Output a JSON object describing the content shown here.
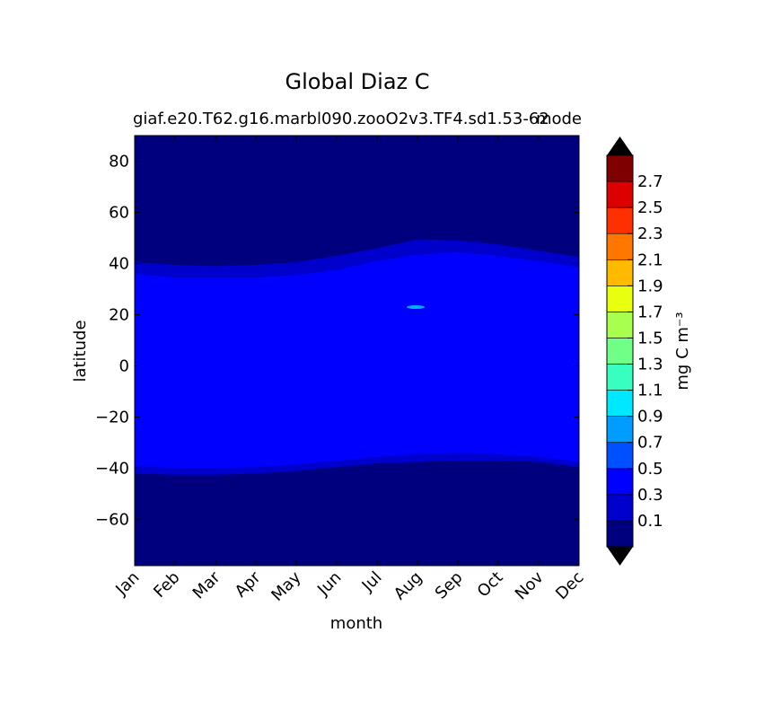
{
  "chart_data": {
    "type": "heatmap",
    "title": "Global Diaz C",
    "subtitle_left": "giaf.e20.T62.g16.marbl090.zooO2v3.TF4.sd1.53-62",
    "subtitle_right": "mode",
    "xlabel": "month",
    "ylabel": "latitude",
    "x_categories": [
      "Jan",
      "Feb",
      "Mar",
      "Apr",
      "May",
      "Jun",
      "Jul",
      "Aug",
      "Sep",
      "Oct",
      "Nov",
      "Dec"
    ],
    "ylim": [
      -78,
      90
    ],
    "yticks": [
      80,
      60,
      40,
      20,
      0,
      -20,
      -40,
      -60
    ],
    "ytick_labels": [
      "80",
      "60",
      "40",
      "20",
      "0",
      "−20",
      "−40",
      "−60"
    ],
    "colorbar": {
      "label": "mg C m⁻³",
      "levels": [
        0,
        0.2,
        0.4,
        0.6,
        0.8,
        1.0,
        1.2,
        1.4,
        1.6,
        1.8,
        2.0,
        2.2,
        2.4,
        2.6,
        2.8
      ],
      "tick_labels": [
        "0.1",
        "0.3",
        "0.5",
        "0.7",
        "0.9",
        "1.1",
        "1.3",
        "1.5",
        "1.7",
        "1.9",
        "2.1",
        "2.3",
        "2.5",
        "2.7"
      ],
      "colors": [
        "#00007f",
        "#0000cd",
        "#0000ff",
        "#0050ff",
        "#009cff",
        "#00e8ff",
        "#38ffbf",
        "#70ff87",
        "#a8ff4f",
        "#e8ff0f",
        "#ffba00",
        "#ff7600",
        "#ff3000",
        "#dd0000",
        "#7f0000"
      ],
      "extend_colors": {
        "under": "#000000",
        "over": "#000000"
      }
    },
    "fields": {
      "band_0p2_north_edge": [
        40.5,
        39.5,
        39,
        39.5,
        40.5,
        43,
        46,
        49.5,
        49,
        47.5,
        45,
        42.5
      ],
      "band_0p2_south_edge": [
        -42,
        -42.5,
        -42.5,
        -42,
        -41,
        -39.5,
        -38,
        -37.5,
        -37,
        -37,
        -37.5,
        -39.5
      ],
      "band_0p4_north_edge": [
        36,
        34.5,
        34.5,
        34.5,
        35.5,
        37.5,
        41,
        43.5,
        44.5,
        43,
        41,
        38.5
      ],
      "band_0p4_south_edge": [
        -39,
        -40,
        -40,
        -39.5,
        -38.5,
        -37,
        -35.5,
        -34.5,
        -34,
        -34.5,
        -35.5,
        -37.5
      ],
      "hotspot": {
        "month": "Aug",
        "lat": 23,
        "level": 0.6
      }
    }
  }
}
